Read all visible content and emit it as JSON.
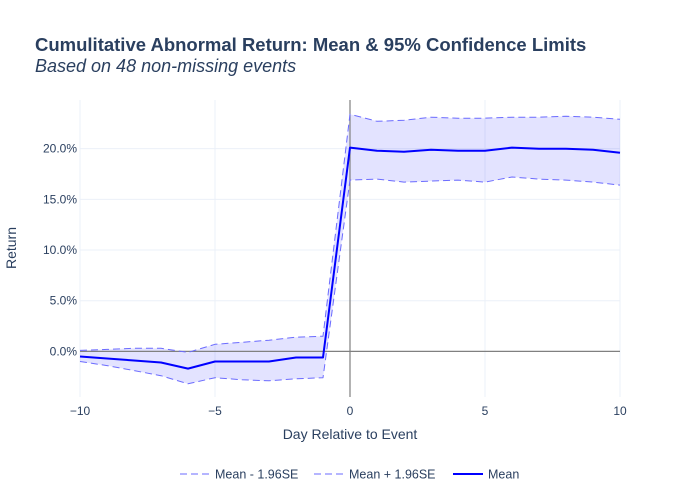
{
  "chart_data": {
    "type": "line",
    "title": "Cumulitative Abnormal Return: Mean & 95% Confidence Limits",
    "subtitle": "Based on 48 non-missing events",
    "xlabel": "Day Relative to Event",
    "ylabel": "Return",
    "xlim": [
      -10,
      10
    ],
    "ylim": [
      -0.045,
      0.248
    ],
    "x_ticks": [
      -10,
      -5,
      0,
      5,
      10
    ],
    "x_tick_labels": [
      "−10",
      "−5",
      "0",
      "5",
      "10"
    ],
    "y_ticks": [
      0.0,
      0.05,
      0.1,
      0.15,
      0.2
    ],
    "y_tick_labels": [
      "0.0%",
      "5.0%",
      "10.0%",
      "15.0%",
      "20.0%"
    ],
    "grid": true,
    "legend_position": "bottom-center",
    "x": [
      -10,
      -9,
      -8,
      -7,
      -6,
      -5,
      -4,
      -3,
      -2,
      -1,
      0,
      1,
      2,
      3,
      4,
      5,
      6,
      7,
      8,
      9,
      10
    ],
    "series": [
      {
        "name": "Mean - 1.96SE",
        "style": "dashed",
        "color": "#6b6bff",
        "values": [
          -0.01,
          -0.014,
          -0.019,
          -0.024,
          -0.032,
          -0.026,
          -0.028,
          -0.029,
          -0.027,
          -0.026,
          0.169,
          0.17,
          0.167,
          0.168,
          0.169,
          0.167,
          0.172,
          0.17,
          0.169,
          0.167,
          0.164
        ]
      },
      {
        "name": "Mean + 1.96SE",
        "style": "dashed",
        "color": "#6b6bff",
        "values": [
          0.001,
          0.002,
          0.003,
          0.003,
          -0.001,
          0.007,
          0.009,
          0.011,
          0.014,
          0.015,
          0.234,
          0.227,
          0.228,
          0.231,
          0.23,
          0.23,
          0.231,
          0.231,
          0.232,
          0.231,
          0.229
        ]
      },
      {
        "name": "Mean",
        "style": "solid",
        "color": "#0000ff",
        "values": [
          -0.005,
          -0.007,
          -0.009,
          -0.011,
          -0.017,
          -0.01,
          -0.01,
          -0.01,
          -0.006,
          -0.006,
          0.201,
          0.198,
          0.197,
          0.199,
          0.198,
          0.198,
          0.201,
          0.2,
          0.2,
          0.199,
          0.196
        ]
      }
    ],
    "band_color": "rgba(0,0,255,0.11)"
  }
}
